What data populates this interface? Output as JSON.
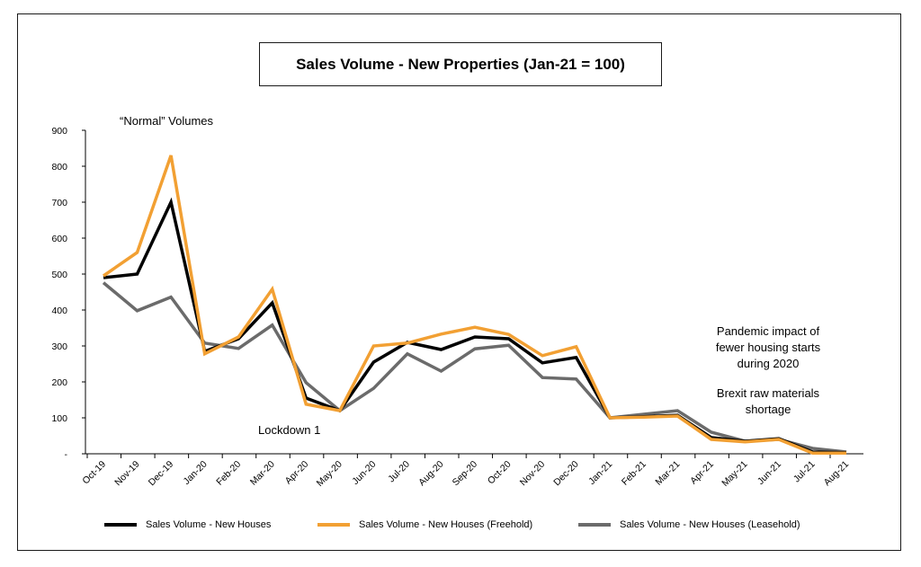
{
  "chart_data": {
    "type": "line",
    "title": "Sales Volume - New Properties (Jan-21 = 100)",
    "categories": [
      "Oct-19",
      "Nov-19",
      "Dec-19",
      "Jan-20",
      "Feb-20",
      "Mar-20",
      "Apr-20",
      "May-20",
      "Jun-20",
      "Jul-20",
      "Aug-20",
      "Sep-20",
      "Oct-20",
      "Nov-20",
      "Dec-20",
      "Jan-21",
      "Feb-21",
      "Mar-21",
      "Apr-21",
      "May-21",
      "Jun-21",
      "Jul-21",
      "Aug-21"
    ],
    "y_ticks": [
      "-",
      "100",
      "200",
      "300",
      "400",
      "500",
      "600",
      "700",
      "800",
      "900"
    ],
    "ylim": [
      0,
      900
    ],
    "grid": false,
    "legend_position": "bottom",
    "series": [
      {
        "name": "Sales Volume - New Houses",
        "color": "#000000",
        "values": [
          490,
          500,
          700,
          285,
          320,
          420,
          155,
          120,
          255,
          310,
          290,
          325,
          320,
          253,
          268,
          100,
          103,
          107,
          45,
          35,
          42,
          5,
          3
        ]
      },
      {
        "name": "Sales Volume - New Houses (Freehold)",
        "color": "#F2A033",
        "values": [
          495,
          560,
          830,
          278,
          325,
          458,
          138,
          120,
          300,
          308,
          333,
          352,
          332,
          273,
          298,
          100,
          102,
          105,
          40,
          33,
          40,
          2,
          2
        ]
      },
      {
        "name": "Sales Volume - New Houses (Leasehold)",
        "color": "#6B6B6B",
        "values": [
          476,
          398,
          436,
          308,
          293,
          358,
          198,
          120,
          182,
          278,
          230,
          292,
          302,
          212,
          208,
          100,
          110,
          120,
          60,
          35,
          40,
          15,
          5
        ]
      }
    ],
    "annotations": {
      "normal": "“Normal” Volumes",
      "lockdown": "Lockdown 1",
      "pandemic_1": "Pandemic impact of",
      "pandemic_2": "fewer housing starts",
      "pandemic_3": "during 2020",
      "brexit_1": "Brexit raw materials",
      "brexit_2": "shortage"
    }
  }
}
